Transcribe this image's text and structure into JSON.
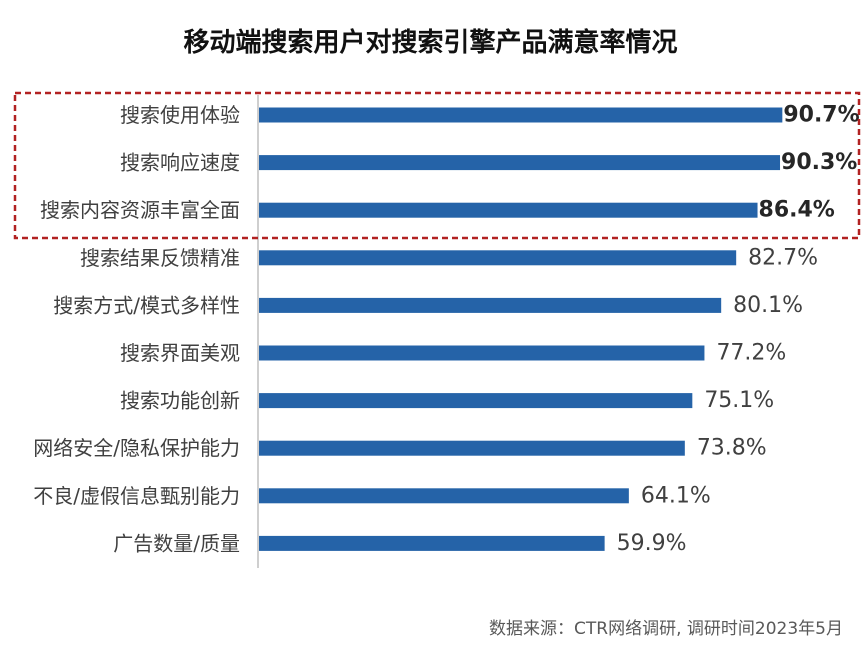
{
  "chart_data": {
    "type": "bar",
    "orientation": "horizontal",
    "title": "移动端搜索用户对搜索引擎产品满意率情况",
    "categories": [
      "搜索使用体验",
      "搜索响应速度",
      "搜索内容资源丰富全面",
      "搜索结果反馈精准",
      "搜索方式/模式多样性",
      "搜索界面美观",
      "搜索功能创新",
      "网络安全/隐私保护能力",
      "不良/虚假信息甄别能力",
      "广告数量/质量"
    ],
    "values": [
      90.7,
      90.3,
      86.4,
      82.7,
      80.1,
      77.2,
      75.1,
      73.8,
      64.1,
      59.9
    ],
    "value_labels": [
      "90.7%",
      "90.3%",
      "86.4%",
      "82.7%",
      "80.1%",
      "77.2%",
      "75.1%",
      "73.8%",
      "64.1%",
      "59.9%"
    ],
    "highlighted_count": 3,
    "xlim": [
      0,
      100
    ],
    "grid": false,
    "legend": "none",
    "bar_color": "#2563a8",
    "highlight_box_color": "#b22222"
  },
  "source": "数据来源：CTR网络调研, 调研时间2023年5月"
}
